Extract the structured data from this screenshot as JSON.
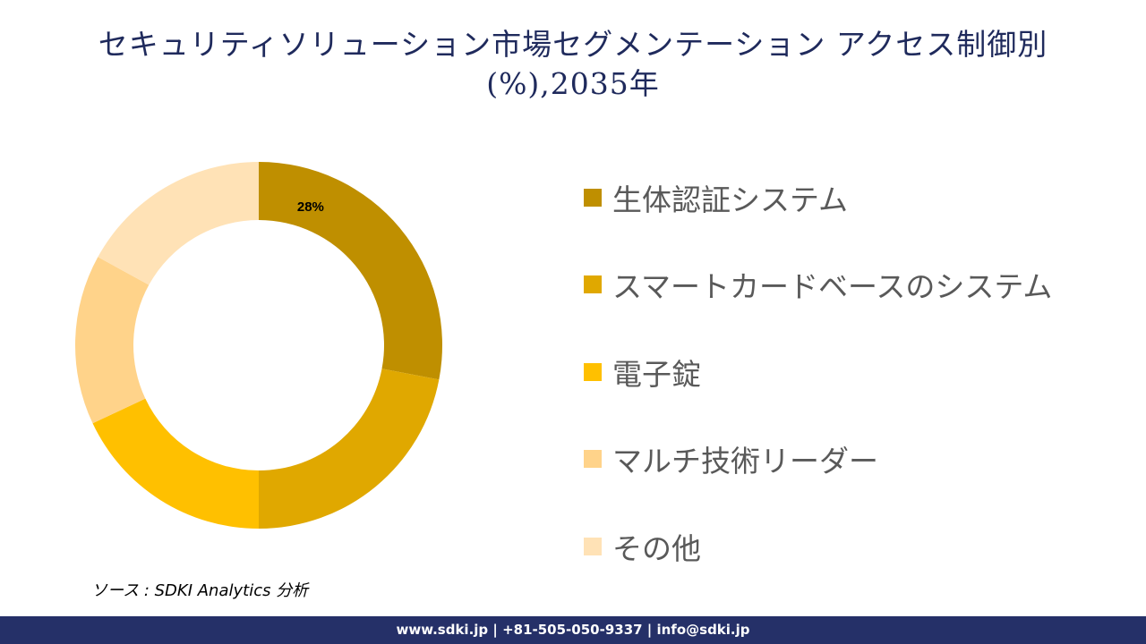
{
  "title_line1": "セキュリティソリューション市場セグメンテーション アクセス制御別",
  "title_line2": "(%),2035年",
  "chart_data": {
    "type": "pie",
    "donut": true,
    "categories": [
      "生体認証システム",
      "スマートカードベースのシステム",
      "電子錠",
      "マルチ技術リーダー",
      "その他"
    ],
    "values": [
      28,
      22,
      18,
      15,
      17
    ],
    "data_labels": [
      "28%",
      null,
      null,
      null,
      null
    ],
    "colors": [
      "#BF8F00",
      "#E0A800",
      "#FFC000",
      "#FFD38A",
      "#FFE2B6"
    ],
    "legend_position": "right"
  },
  "source": "ソース : SDKI Analytics 分析",
  "footer": "www.sdki.jp | +81-505-050-9337 | info@sdki.jp"
}
